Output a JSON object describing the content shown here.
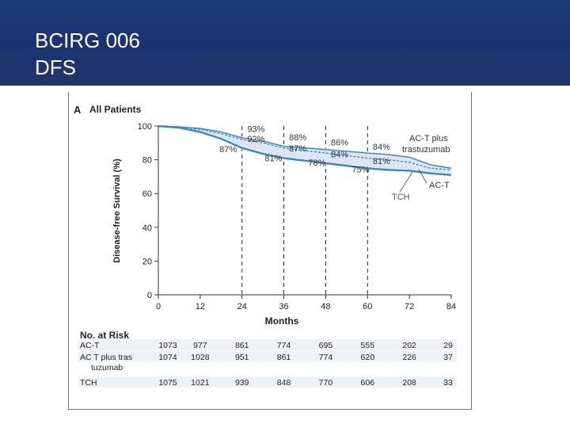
{
  "header": {
    "title_line1": "BCIRG 006",
    "title_line2": "DFS"
  },
  "colors": {
    "header_bg": "#1a3270",
    "curve": "#3a86b8",
    "axis": "#333333",
    "band": "#dbe6f2"
  },
  "chart_data": {
    "type": "line",
    "panel": "A",
    "title": "All Patients",
    "xlabel": "Months",
    "ylabel": "Disease-free Survival (%)",
    "xlim": [
      0,
      84
    ],
    "ylim": [
      0,
      100
    ],
    "x_ticks": [
      0,
      12,
      24,
      36,
      48,
      60,
      72,
      84
    ],
    "y_ticks": [
      0,
      20,
      40,
      60,
      80,
      100
    ],
    "reference_lines_x": [
      24,
      36,
      48,
      60
    ],
    "series": [
      {
        "name": "AC-T plus trastuzumab",
        "label": "AC-T plus trastuzumab",
        "x": [
          0,
          6,
          12,
          18,
          24,
          30,
          36,
          42,
          48,
          54,
          60,
          66,
          72,
          78,
          84
        ],
        "y": [
          100,
          99.5,
          98,
          95.5,
          92,
          90,
          87,
          85.5,
          84,
          82.5,
          81,
          80,
          78.5,
          75,
          74
        ]
      },
      {
        "name": "TCH",
        "label": "TCH",
        "x": [
          0,
          6,
          12,
          18,
          24,
          30,
          36,
          42,
          48,
          54,
          60,
          66,
          72,
          78,
          84
        ],
        "y": [
          100,
          99.5,
          98.5,
          96.5,
          93,
          91,
          88,
          87,
          86,
          85,
          84,
          83,
          81.5,
          77,
          75
        ]
      },
      {
        "name": "AC-T",
        "label": "AC-T",
        "x": [
          0,
          6,
          12,
          18,
          24,
          30,
          36,
          42,
          48,
          54,
          60,
          66,
          72,
          78,
          84
        ],
        "y": [
          100,
          99,
          96.5,
          92.5,
          87,
          83.5,
          81,
          79.5,
          78,
          76.5,
          75,
          74,
          73.5,
          72,
          71
        ]
      }
    ],
    "annotations": [
      {
        "text": "93%",
        "x": 25.5,
        "y": 96.5
      },
      {
        "text": "92%",
        "x": 25.5,
        "y": 90.5
      },
      {
        "text": "87%",
        "x": 17.5,
        "y": 84.5
      },
      {
        "text": "88%",
        "x": 37.5,
        "y": 91.5
      },
      {
        "text": "87%",
        "x": 37.5,
        "y": 85
      },
      {
        "text": "81%",
        "x": 30.5,
        "y": 79
      },
      {
        "text": "86%",
        "x": 49.5,
        "y": 88.5
      },
      {
        "text": "84%",
        "x": 49.5,
        "y": 81.5
      },
      {
        "text": "78%",
        "x": 43,
        "y": 76.5
      },
      {
        "text": "84%",
        "x": 61.5,
        "y": 86
      },
      {
        "text": "81%",
        "x": 61.5,
        "y": 77.5
      },
      {
        "text": "75%",
        "x": 55.5,
        "y": 72.5
      }
    ],
    "at_risk": {
      "title": "No. at Risk",
      "rows": [
        {
          "label_line1": "AC-T",
          "label_line2": "",
          "values": [
            "1073",
            "977",
            "861",
            "774",
            "695",
            "555",
            "202",
            "29"
          ]
        },
        {
          "label_line1": "AC T plus tras",
          "label_line2": "tuzumab",
          "values": [
            "1074",
            "1028",
            "951",
            "861",
            "774",
            "620",
            "226",
            "37"
          ]
        },
        {
          "label_line1": "TCH",
          "label_line2": "",
          "values": [
            "1075",
            "1021",
            "939",
            "848",
            "770",
            "606",
            "208",
            "33"
          ]
        }
      ]
    }
  }
}
